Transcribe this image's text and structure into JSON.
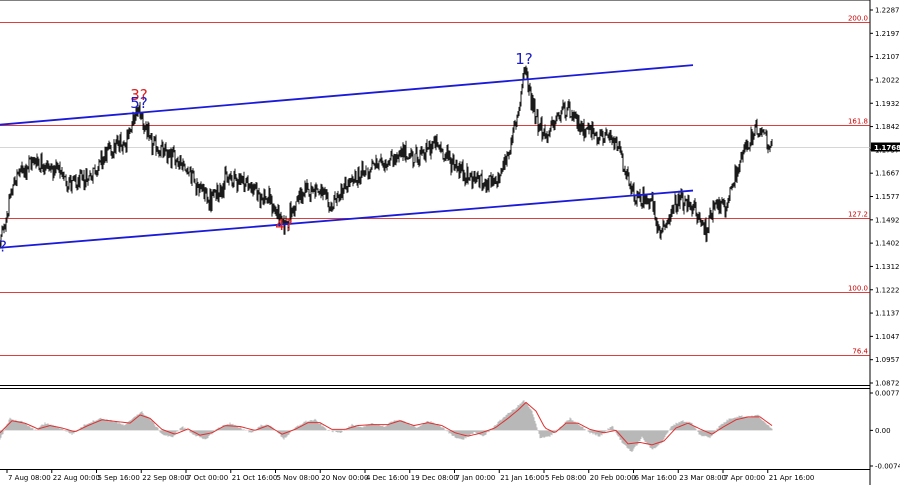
{
  "chart_data": [
    {
      "type": "line",
      "title": "",
      "xlabel": "",
      "ylabel": "",
      "x_tick_labels": [
        "7 Aug 08:00",
        "22 Aug 00:00",
        "5 Sep 16:00",
        "22 Sep 08:00",
        "7 Oct 00:00",
        "21 Oct 16:00",
        "5 Nov 08:00",
        "20 Nov 00:00",
        "4 Dec 16:00",
        "19 Dec 08:00",
        "7 Jan 00:00",
        "21 Jan 16:00",
        "5 Feb 08:00",
        "20 Feb 00:00",
        "6 Mar 16:00",
        "23 Mar 08:00",
        "7 Apr 00:00",
        "21 Apr 16:00"
      ],
      "y_tick_labels": [
        "1.2287",
        "1.2197",
        "1.2107",
        "1.2022",
        "1.1932",
        "1.1842",
        "1.1757",
        "1.1667",
        "1.1577",
        "1.1492",
        "1.1402",
        "1.1312",
        "1.1222",
        "1.1137",
        "1.1047",
        "1.0957",
        "1.0872"
      ],
      "ylim": [
        1.0872,
        1.2287
      ],
      "current_price": "1.1768",
      "fib_levels": [
        {
          "label": "200.0",
          "value": 1.2243
        },
        {
          "label": "161.8",
          "value": 1.1852
        },
        {
          "label": "127.2",
          "value": 1.1497
        },
        {
          "label": "100.0",
          "value": 1.1218
        },
        {
          "label": "76.4",
          "value": 1.0977
        }
      ],
      "wave_labels": [
        {
          "text": "3?",
          "color": "#e02020",
          "bar": 139,
          "price": 1.1945
        },
        {
          "text": "5?",
          "color": "#1c1cc8",
          "bar": 139,
          "price": 1.1915
        },
        {
          "text": "4?",
          "color": "#e02020",
          "bar": 284,
          "price": 1.1452
        },
        {
          "text": "1?",
          "color": "#1c1cc8",
          "bar": 524,
          "price": 1.2082
        },
        {
          "text": "?",
          "color": "#1c1cc8",
          "bar": 3,
          "price": 1.137
        }
      ],
      "channel_lines": [
        {
          "from_bar": 0,
          "from_price": 1.1852,
          "to_bar": 693,
          "to_price": 1.2078
        },
        {
          "from_bar": 0,
          "from_price": 1.1385,
          "to_bar": 693,
          "to_price": 1.1602
        }
      ],
      "price_anchors": [
        [
          0,
          1.14
        ],
        [
          15,
          1.165
        ],
        [
          35,
          1.172
        ],
        [
          55,
          1.168
        ],
        [
          75,
          1.162
        ],
        [
          90,
          1.166
        ],
        [
          110,
          1.176
        ],
        [
          125,
          1.179
        ],
        [
          139,
          1.1915
        ],
        [
          150,
          1.178
        ],
        [
          165,
          1.174
        ],
        [
          180,
          1.172
        ],
        [
          195,
          1.164
        ],
        [
          210,
          1.156
        ],
        [
          225,
          1.164
        ],
        [
          240,
          1.165
        ],
        [
          255,
          1.16
        ],
        [
          270,
          1.156
        ],
        [
          284,
          1.147
        ],
        [
          300,
          1.158
        ],
        [
          315,
          1.162
        ],
        [
          330,
          1.154
        ],
        [
          345,
          1.161
        ],
        [
          360,
          1.166
        ],
        [
          375,
          1.17
        ],
        [
          390,
          1.172
        ],
        [
          405,
          1.174
        ],
        [
          420,
          1.173
        ],
        [
          435,
          1.178
        ],
        [
          450,
          1.172
        ],
        [
          465,
          1.166
        ],
        [
          480,
          1.164
        ],
        [
          495,
          1.162
        ],
        [
          510,
          1.176
        ],
        [
          518,
          1.19
        ],
        [
          524,
          1.206
        ],
        [
          535,
          1.19
        ],
        [
          545,
          1.18
        ],
        [
          555,
          1.186
        ],
        [
          565,
          1.192
        ],
        [
          575,
          1.186
        ],
        [
          590,
          1.183
        ],
        [
          605,
          1.18
        ],
        [
          620,
          1.176
        ],
        [
          630,
          1.16
        ],
        [
          640,
          1.156
        ],
        [
          650,
          1.158
        ],
        [
          660,
          1.142
        ],
        [
          670,
          1.152
        ],
        [
          680,
          1.156
        ],
        [
          692,
          1.154
        ],
        [
          706,
          1.145
        ],
        [
          715,
          1.157
        ],
        [
          725,
          1.152
        ],
        [
          735,
          1.166
        ],
        [
          745,
          1.176
        ],
        [
          755,
          1.182
        ],
        [
          763,
          1.183
        ],
        [
          772,
          1.1768
        ]
      ]
    },
    {
      "type": "area",
      "title": "",
      "y_tick_labels": [
        "0.00776",
        "0.00",
        "-0.0074"
      ],
      "ylim": [
        -0.0074,
        0.00776
      ],
      "signal_color": "#e03030",
      "histogram_color": "#b8b8b8",
      "hist_anchors": [
        [
          0,
          -0.002
        ],
        [
          10,
          0.0025
        ],
        [
          22,
          0.0018
        ],
        [
          35,
          0.0
        ],
        [
          45,
          0.0015
        ],
        [
          60,
          0.0005
        ],
        [
          72,
          -0.0008
        ],
        [
          85,
          0.0012
        ],
        [
          100,
          0.0025
        ],
        [
          115,
          0.0018
        ],
        [
          125,
          0.001
        ],
        [
          135,
          0.003
        ],
        [
          142,
          0.0038
        ],
        [
          152,
          0.002
        ],
        [
          162,
          -0.0008
        ],
        [
          172,
          -0.0015
        ],
        [
          182,
          0.0008
        ],
        [
          195,
          -0.001
        ],
        [
          205,
          -0.002
        ],
        [
          218,
          0.0005
        ],
        [
          230,
          0.0015
        ],
        [
          240,
          0.0005
        ],
        [
          252,
          -0.0005
        ],
        [
          262,
          0.0012
        ],
        [
          272,
          0.0008
        ],
        [
          284,
          -0.0018
        ],
        [
          295,
          0.0005
        ],
        [
          305,
          0.0018
        ],
        [
          315,
          0.0022
        ],
        [
          328,
          0.0
        ],
        [
          340,
          -0.0005
        ],
        [
          352,
          0.0012
        ],
        [
          362,
          0.0005
        ],
        [
          372,
          0.0015
        ],
        [
          385,
          0.0008
        ],
        [
          395,
          0.0022
        ],
        [
          405,
          0.0018
        ],
        [
          418,
          0.0005
        ],
        [
          428,
          0.002
        ],
        [
          440,
          0.001
        ],
        [
          452,
          -0.001
        ],
        [
          462,
          -0.002
        ],
        [
          474,
          -0.0005
        ],
        [
          484,
          -0.0012
        ],
        [
          495,
          0.001
        ],
        [
          505,
          0.003
        ],
        [
          515,
          0.0045
        ],
        [
          524,
          0.0062
        ],
        [
          532,
          0.004
        ],
        [
          540,
          -0.0015
        ],
        [
          550,
          -0.0012
        ],
        [
          560,
          0.0005
        ],
        [
          570,
          0.0025
        ],
        [
          580,
          0.001
        ],
        [
          590,
          -0.0005
        ],
        [
          600,
          -0.0012
        ],
        [
          612,
          0.001
        ],
        [
          622,
          -0.0025
        ],
        [
          632,
          -0.0045
        ],
        [
          642,
          -0.0015
        ],
        [
          652,
          -0.004
        ],
        [
          662,
          -0.0025
        ],
        [
          672,
          0.001
        ],
        [
          682,
          0.002
        ],
        [
          692,
          0.0015
        ],
        [
          700,
          -0.001
        ],
        [
          710,
          -0.0015
        ],
        [
          720,
          0.001
        ],
        [
          730,
          0.0025
        ],
        [
          740,
          0.003
        ],
        [
          750,
          0.0028
        ],
        [
          758,
          0.0032
        ],
        [
          765,
          0.0015
        ],
        [
          772,
          0.0005
        ]
      ],
      "signal_anchors": [
        [
          0,
          -0.0005
        ],
        [
          12,
          0.002
        ],
        [
          25,
          0.0015
        ],
        [
          38,
          0.0003
        ],
        [
          50,
          0.001
        ],
        [
          62,
          0.0005
        ],
        [
          75,
          -0.0003
        ],
        [
          88,
          0.001
        ],
        [
          102,
          0.0022
        ],
        [
          118,
          0.0018
        ],
        [
          130,
          0.0015
        ],
        [
          140,
          0.0032
        ],
        [
          150,
          0.0025
        ],
        [
          162,
          0.0002
        ],
        [
          175,
          -0.0008
        ],
        [
          188,
          0.0003
        ],
        [
          200,
          -0.001
        ],
        [
          212,
          -0.0005
        ],
        [
          225,
          0.001
        ],
        [
          240,
          0.0008
        ],
        [
          255,
          0.0
        ],
        [
          268,
          0.001
        ],
        [
          282,
          -0.0008
        ],
        [
          295,
          0.0002
        ],
        [
          308,
          0.0016
        ],
        [
          320,
          0.0016
        ],
        [
          332,
          0.0002
        ],
        [
          345,
          0.0002
        ],
        [
          358,
          0.001
        ],
        [
          372,
          0.0012
        ],
        [
          388,
          0.0012
        ],
        [
          400,
          0.002
        ],
        [
          414,
          0.001
        ],
        [
          428,
          0.0016
        ],
        [
          442,
          0.001
        ],
        [
          455,
          -0.0005
        ],
        [
          468,
          -0.0012
        ],
        [
          480,
          -0.0006
        ],
        [
          495,
          0.0005
        ],
        [
          508,
          0.0025
        ],
        [
          518,
          0.0042
        ],
        [
          526,
          0.0058
        ],
        [
          536,
          0.004
        ],
        [
          545,
          0.0005
        ],
        [
          555,
          -0.0005
        ],
        [
          566,
          0.0015
        ],
        [
          578,
          0.0015
        ],
        [
          590,
          0.0002
        ],
        [
          604,
          -0.0005
        ],
        [
          616,
          0.0
        ],
        [
          628,
          -0.0028
        ],
        [
          640,
          -0.0025
        ],
        [
          652,
          -0.003
        ],
        [
          664,
          -0.0022
        ],
        [
          676,
          0.0005
        ],
        [
          688,
          0.0015
        ],
        [
          700,
          0.0003
        ],
        [
          712,
          -0.0008
        ],
        [
          724,
          0.0008
        ],
        [
          736,
          0.0022
        ],
        [
          748,
          0.0028
        ],
        [
          760,
          0.0028
        ],
        [
          772,
          0.001
        ]
      ]
    }
  ]
}
